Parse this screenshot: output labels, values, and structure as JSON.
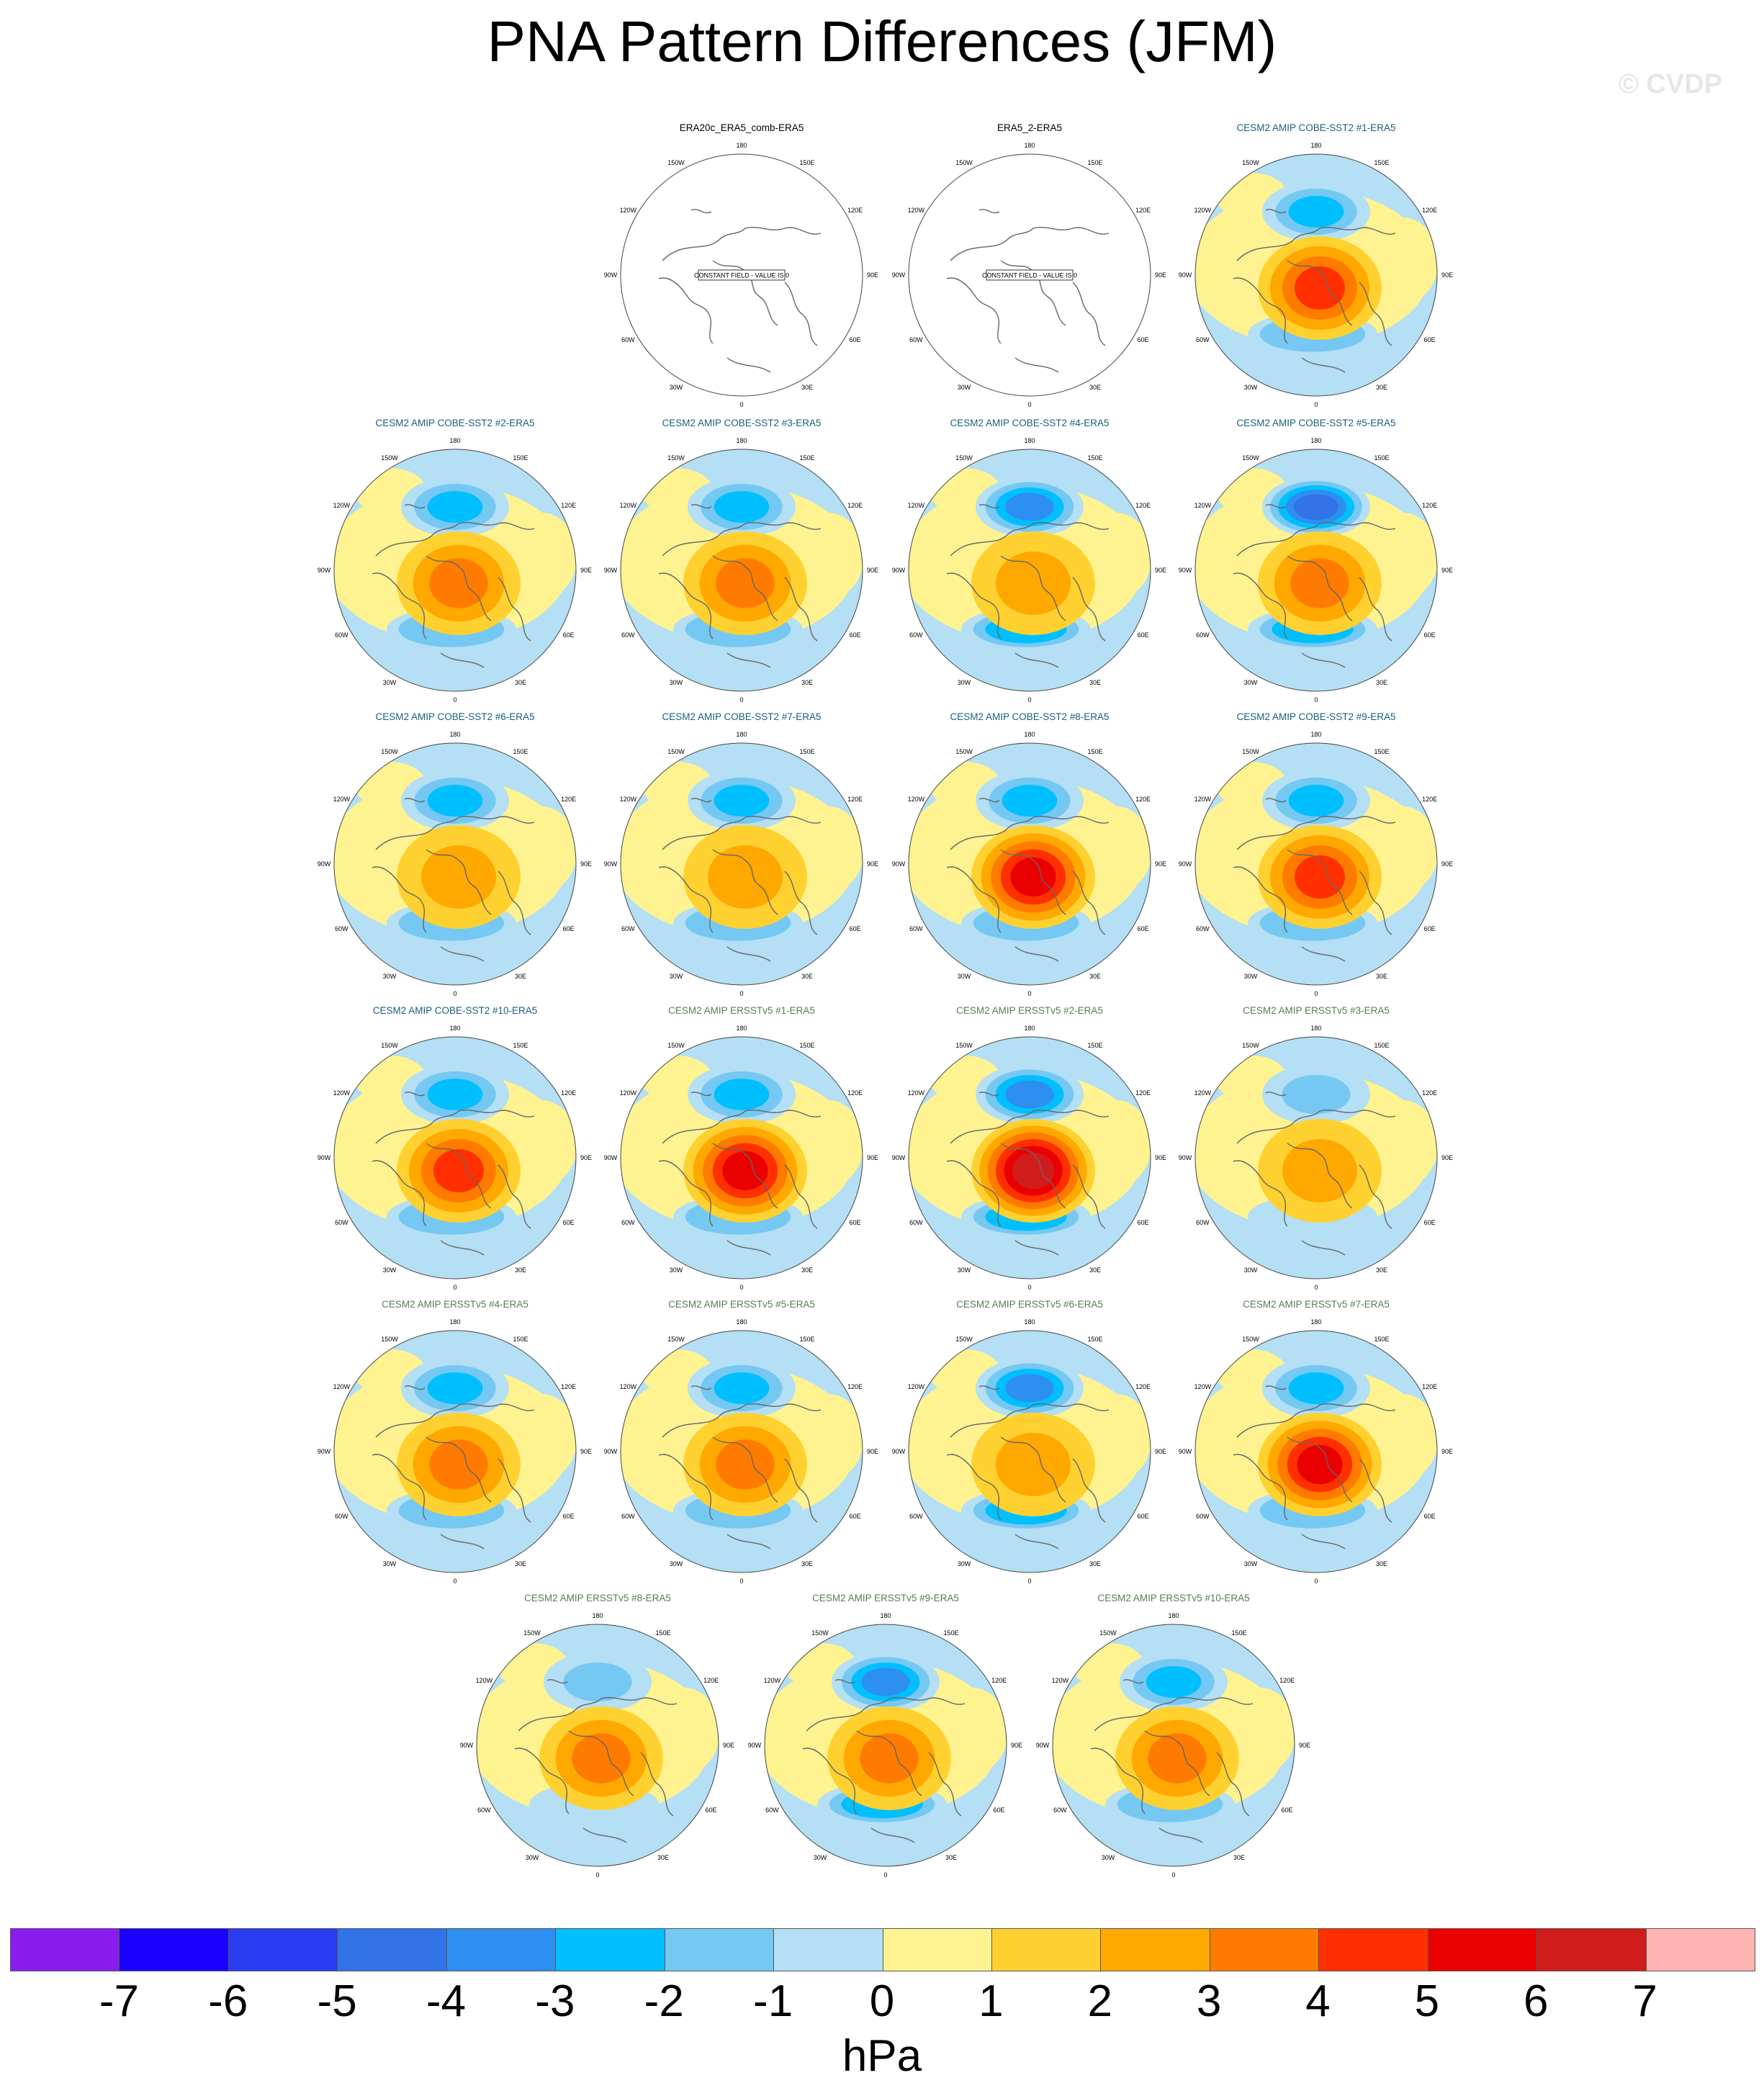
{
  "figure": {
    "title": "PNA Pattern Differences (JFM)",
    "watermark": "© CVDP"
  },
  "map_labels": {
    "top": "180",
    "bottom": "0",
    "upper_left": "150W",
    "upper_right": "150E",
    "mid_upper_left": "120W",
    "mid_upper_right": "120E",
    "left": "90W",
    "right": "90E",
    "mid_lower_left": "60W",
    "mid_lower_right": "60E",
    "lower_left": "30W",
    "lower_right": "30E"
  },
  "constant_field_note": "CONSTANT FIELD - VALUE IS 0",
  "panels": [
    {
      "title": "ERA20c_ERA5_comb-ERA5",
      "group": "obs",
      "constant": true
    },
    {
      "title": "ERA5_2-ERA5",
      "group": "obs",
      "constant": true
    },
    {
      "title": "CESM2 AMIP COBE-SST2 #1-ERA5",
      "group": "cobe",
      "low": -3,
      "high": 4
    },
    {
      "title": "CESM2 AMIP COBE-SST2 #2-ERA5",
      "group": "cobe",
      "low": -3,
      "high": 3
    },
    {
      "title": "CESM2 AMIP COBE-SST2 #3-ERA5",
      "group": "cobe",
      "low": -3,
      "high": 3
    },
    {
      "title": "CESM2 AMIP COBE-SST2 #4-ERA5",
      "group": "cobe",
      "low": -4,
      "high": 2
    },
    {
      "title": "CESM2 AMIP COBE-SST2 #5-ERA5",
      "group": "cobe",
      "low": -5,
      "high": 3
    },
    {
      "title": "CESM2 AMIP COBE-SST2 #6-ERA5",
      "group": "cobe",
      "low": -3,
      "high": 2
    },
    {
      "title": "CESM2 AMIP COBE-SST2 #7-ERA5",
      "group": "cobe",
      "low": -3,
      "high": 2
    },
    {
      "title": "CESM2 AMIP COBE-SST2 #8-ERA5",
      "group": "cobe",
      "low": -3,
      "high": 5
    },
    {
      "title": "CESM2 AMIP COBE-SST2 #9-ERA5",
      "group": "cobe",
      "low": -3,
      "high": 4
    },
    {
      "title": "CESM2 AMIP COBE-SST2 #10-ERA5",
      "group": "cobe",
      "low": -3,
      "high": 4
    },
    {
      "title": "CESM2 AMIP ERSSTv5 #1-ERA5",
      "group": "ersst",
      "low": -3,
      "high": 5
    },
    {
      "title": "CESM2 AMIP ERSSTv5 #2-ERA5",
      "group": "ersst",
      "low": -4,
      "high": 6
    },
    {
      "title": "CESM2 AMIP ERSSTv5 #3-ERA5",
      "group": "ersst",
      "low": -2,
      "high": 2
    },
    {
      "title": "CESM2 AMIP ERSSTv5 #4-ERA5",
      "group": "ersst",
      "low": -3,
      "high": 3
    },
    {
      "title": "CESM2 AMIP ERSSTv5 #5-ERA5",
      "group": "ersst",
      "low": -3,
      "high": 3
    },
    {
      "title": "CESM2 AMIP ERSSTv5 #6-ERA5",
      "group": "ersst",
      "low": -4,
      "high": 2
    },
    {
      "title": "CESM2 AMIP ERSSTv5 #7-ERA5",
      "group": "ersst",
      "low": -3,
      "high": 5
    },
    {
      "title": "CESM2 AMIP ERSSTv5 #8-ERA5",
      "group": "ersst",
      "low": -2,
      "high": 3
    },
    {
      "title": "CESM2 AMIP ERSSTv5 #9-ERA5",
      "group": "ersst",
      "low": -4,
      "high": 3
    },
    {
      "title": "CESM2 AMIP ERSSTv5 #10-ERA5",
      "group": "ersst",
      "low": -3,
      "high": 3
    }
  ],
  "colorbar": {
    "colors": [
      "#8a1cf0",
      "#1a00ff",
      "#2a3cef",
      "#3273e8",
      "#2d8ff0",
      "#00bfff",
      "#75c8f2",
      "#b4dff4",
      "#fff391",
      "#ffd130",
      "#ffa800",
      "#ff7b00",
      "#ff2f00",
      "#ea0000",
      "#d11c1c",
      "#ffb4b4"
    ],
    "ticks": [
      "-7",
      "-6",
      "-5",
      "-4",
      "-3",
      "-2",
      "-1",
      "0",
      "1",
      "2",
      "3",
      "4",
      "5",
      "6",
      "7"
    ],
    "units": "hPa"
  }
}
